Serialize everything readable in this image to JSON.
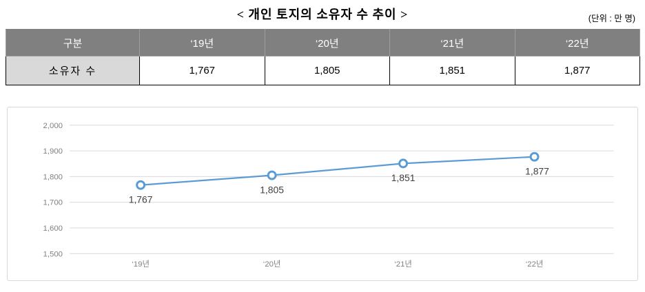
{
  "title": "< 개인 토지의 소유자 수 추이 >",
  "unit_label": "(단위 : 만 명)",
  "table": {
    "header": [
      "구분",
      "‘19년",
      "‘20년",
      "‘21년",
      "‘22년"
    ],
    "row_label": "소유자 수",
    "values": [
      "1,767",
      "1,805",
      "1,851",
      "1,877"
    ]
  },
  "chart_data": {
    "type": "line",
    "title": "",
    "categories": [
      "‘19년",
      "‘20년",
      "‘21년",
      "‘22년"
    ],
    "values": [
      1767,
      1805,
      1851,
      1877
    ],
    "value_labels": [
      "1,767",
      "1,805",
      "1,851",
      "1,877"
    ],
    "ylim": [
      1500,
      2000
    ],
    "yticks": [
      {
        "value": 1500,
        "label": "1,500"
      },
      {
        "value": 1600,
        "label": "1,600"
      },
      {
        "value": 1700,
        "label": "1,700"
      },
      {
        "value": 1800,
        "label": "1,800"
      },
      {
        "value": 1900,
        "label": "1,900"
      },
      {
        "value": 2000,
        "label": "2,000"
      }
    ],
    "grid": true,
    "legend": "none",
    "line_color": "#5b9bd5",
    "marker_fill": "#ffffff",
    "grid_color": "#d9d9d9",
    "tick_color": "#808080",
    "label_color": "#404040"
  }
}
